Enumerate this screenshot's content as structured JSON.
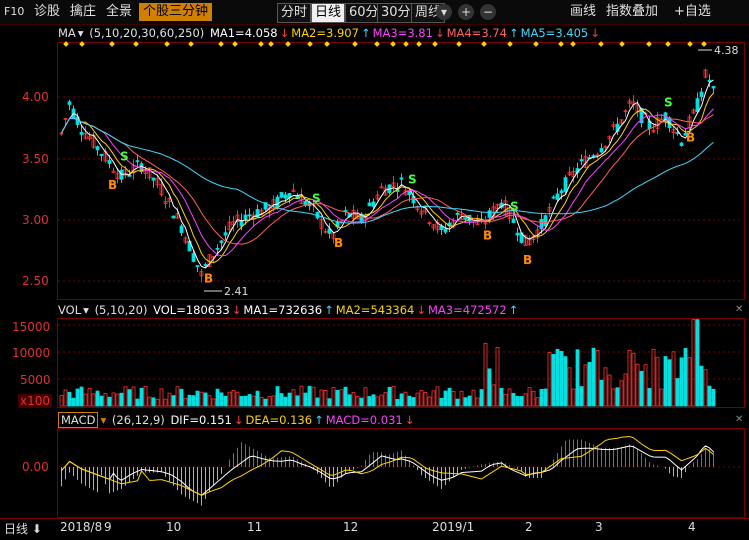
{
  "toolbar": {
    "f10": "F10",
    "diagnose": "诊股",
    "zhuangzhuang": "擒庄",
    "quanjing": "全景",
    "active_tab": "个股三分钟",
    "periods": [
      "分时",
      "日线",
      "60分",
      "30分",
      "周线"
    ],
    "selected_period": "日线",
    "period_dropdown": "▾",
    "plus": "+",
    "minus": "−",
    "draw": "画线",
    "overlay": "指数叠加",
    "add_favorite": "+自选"
  },
  "ma_legend": {
    "name": "MA",
    "params": "(5,10,20,30,60,250)",
    "items": [
      {
        "label": "MA1=4.058",
        "color": "#ffffff"
      },
      {
        "label": "MA2=3.907",
        "color": "#ffd400"
      },
      {
        "label": "MA3=3.81",
        "color": "#ff40ff"
      },
      {
        "label": "MA4=3.74",
        "color": "#ff6060"
      },
      {
        "label": "MA5=3.405",
        "color": "#40d8ff"
      }
    ],
    "params_colors": [
      "#ffffff",
      "#ffd400",
      "#ff40ff",
      "#ff6060",
      "#40d8ff",
      "#40ff40"
    ]
  },
  "vol_legend": {
    "name": "VOL",
    "params": "(5,10,20)",
    "items": [
      {
        "label": "VOL=180633",
        "color": "#ffffff"
      },
      {
        "label": "MA1=732636",
        "color": "#ffffff"
      },
      {
        "label": "MA2=543364",
        "color": "#ffd400"
      },
      {
        "label": "MA3=472572",
        "color": "#ff40ff"
      }
    ]
  },
  "macd_legend": {
    "name": "MACD",
    "params": "(26,12,9)",
    "items": [
      {
        "label": "DIF=0.151",
        "color": "#ffffff"
      },
      {
        "label": "DEA=0.136",
        "color": "#ffd400"
      },
      {
        "label": "MACD=0.031",
        "color": "#ff40ff"
      }
    ]
  },
  "price_axis": [
    "4.00",
    "3.50",
    "3.00",
    "2.50"
  ],
  "vol_axis": [
    "15000",
    "10000",
    "5000",
    "x100"
  ],
  "macd_axis": [
    "0.00"
  ],
  "annotations": {
    "high": "4.38",
    "low": "2.41"
  },
  "signals": {
    "buy": "B",
    "sell": "S"
  },
  "bottom": {
    "period_label": "日线",
    "months": [
      "2018/8",
      "9",
      "10",
      "11",
      "12",
      "2019/1",
      "2",
      "3",
      "4"
    ]
  },
  "colors": {
    "up": "#ff3232",
    "down": "#00e0e0",
    "grid": "#7a0000",
    "axis_text": "#e03030"
  }
}
